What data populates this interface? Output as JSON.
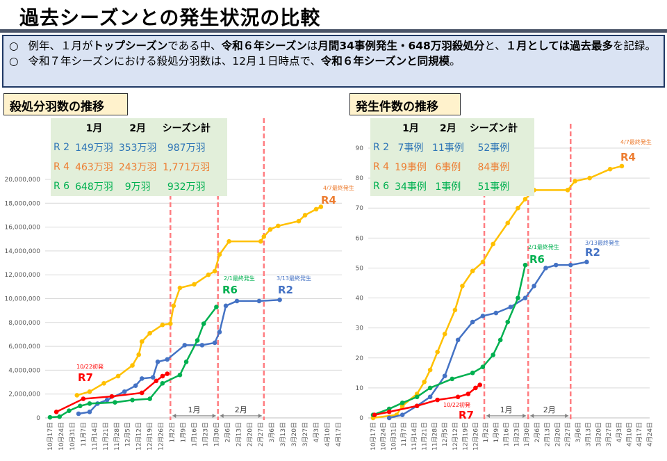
{
  "title": "過去シーズンとの発生状況の比較",
  "banner": {
    "bullet": "○",
    "line1": [
      {
        "t": "例年、１月が",
        "b": false
      },
      {
        "t": "トップシーズン",
        "b": true
      },
      {
        "t": "である中、",
        "b": false
      },
      {
        "t": "令和６年シーズン",
        "b": true
      },
      {
        "t": "は",
        "b": false
      },
      {
        "t": "月間34事例発生・648万羽殺処分",
        "b": true
      },
      {
        "t": "と、",
        "b": false
      },
      {
        "t": "１月としては過去最多",
        "b": true
      },
      {
        "t": "を記録。",
        "b": false
      }
    ],
    "line2": [
      {
        "t": "令和７年シーズンにおける殺処分羽数は、12月１日時点で、",
        "b": false
      },
      {
        "t": "令和６年シーズンと同規模",
        "b": true
      },
      {
        "t": "。",
        "b": false
      }
    ]
  },
  "colors": {
    "R2": "#4472c4",
    "R4": "#ffc000",
    "R4label": "#ed7d31",
    "R6": "#00b050",
    "R7": "#ff0000",
    "dash": "#ff7c80"
  },
  "month_labels": {
    "jan": "1月",
    "feb": "2月"
  },
  "x_labels": [
    "10月17日",
    "10月24日",
    "10月31日",
    "11月7日",
    "11月14日",
    "11月21日",
    "11月28日",
    "12月5日",
    "12月12日",
    "12月19日",
    "12月26日",
    "1月2日",
    "1月9日",
    "1月16日",
    "1月23日",
    "1月30日",
    "2月6日",
    "2月13日",
    "2月20日",
    "2月27日",
    "3月6日",
    "3月13日",
    "3月20日",
    "3月27日",
    "4月3日",
    "4月10日",
    "4月17日",
    "4月24日"
  ],
  "left": {
    "section": "殺処分羽数の推移",
    "table": {
      "headers": [
        "",
        "1月",
        "2月",
        "シーズン計"
      ],
      "rows": [
        {
          "key": "R2",
          "cells": [
            "R 2",
            "149万羽",
            "353万羽",
            "987万羽"
          ]
        },
        {
          "key": "R4",
          "cells": [
            "R 4",
            "463万羽",
            "243万羽",
            "1,771万羽"
          ]
        },
        {
          "key": "R6",
          "cells": [
            "R 6",
            "648万羽",
            "9万羽",
            "932万羽"
          ]
        }
      ]
    }
  },
  "right": {
    "section": "発生件数の推移",
    "table": {
      "headers": [
        "",
        "1月",
        "2月",
        "シーズン計"
      ],
      "rows": [
        {
          "key": "R2",
          "cells": [
            "R 2",
            "7事例",
            "11事例",
            "52事例"
          ]
        },
        {
          "key": "R4",
          "cells": [
            "R 4",
            "19事例",
            "6事例",
            "84事例"
          ]
        },
        {
          "key": "R6",
          "cells": [
            "R 6",
            "34事例",
            "1事例",
            "51事例"
          ]
        }
      ]
    }
  },
  "chart_data": [
    {
      "type": "line",
      "title": "殺処分羽数の推移",
      "x_unit": "days since 10月17日",
      "ylim": [
        0,
        20000000
      ],
      "yticks": [
        "0",
        "2,000,000",
        "4,000,000",
        "6,000,000",
        "8,000,000",
        "10,000,000",
        "12,000,000",
        "14,000,000",
        "16,000,000",
        "18,000,000",
        "20,000,000"
      ],
      "markers_days": [
        76,
        106,
        135
      ],
      "series": [
        {
          "name": "R4",
          "label": "R4",
          "note": "4/7最終発生",
          "x": [
            17,
            25,
            34,
            43,
            52,
            56,
            58,
            63,
            71,
            76,
            78,
            82,
            91,
            100,
            104,
            107,
            113,
            133,
            135,
            139,
            144,
            157,
            161,
            168,
            171
          ],
          "y": [
            1900000,
            2200000,
            2900000,
            3500000,
            4400000,
            5300000,
            6400000,
            7100000,
            7800000,
            7900000,
            9400000,
            10900000,
            11200000,
            12000000,
            12300000,
            13700000,
            14800000,
            14800000,
            15200000,
            15800000,
            16100000,
            16500000,
            17000000,
            17500000,
            17700000
          ]
        },
        {
          "name": "R2",
          "label": "R2",
          "note": "3/13最終発生",
          "x": [
            18,
            25,
            30,
            36,
            47,
            54,
            58,
            65,
            68,
            74,
            85,
            96,
            104,
            107,
            111,
            118,
            132,
            145
          ],
          "y": [
            350000,
            500000,
            1200000,
            1500000,
            2200000,
            2700000,
            3300000,
            3400000,
            4700000,
            4900000,
            6100000,
            6100000,
            6300000,
            7200000,
            9400000,
            9800000,
            9800000,
            9900000
          ]
        },
        {
          "name": "R6",
          "label": "R6",
          "note": "2/1最終発生",
          "x": [
            0,
            6,
            12,
            19,
            25,
            41,
            52,
            63,
            71,
            82,
            86,
            93,
            97,
            105
          ],
          "y": [
            50000,
            100000,
            600000,
            1000000,
            1200000,
            1300000,
            1500000,
            1600000,
            2900000,
            3600000,
            4700000,
            6500000,
            7900000,
            9300000
          ]
        },
        {
          "name": "R7",
          "label": "R7",
          "note": "10/22初発",
          "x": [
            4,
            21,
            39,
            58,
            67,
            71,
            74
          ],
          "y": [
            500000,
            1600000,
            1800000,
            2100000,
            3100000,
            3500000,
            3700000
          ]
        }
      ]
    },
    {
      "type": "line",
      "title": "発生件数の推移",
      "x_unit": "days since 10月17日",
      "ylim": [
        0,
        90
      ],
      "yticks": [
        "0",
        "10",
        "20",
        "30",
        "40",
        "50",
        "60",
        "70",
        "80",
        "90"
      ],
      "markers_days": [
        76,
        106,
        135
      ],
      "series": [
        {
          "name": "R4",
          "label": "R4",
          "note": "4/7最終発生",
          "x": [
            0,
            16,
            20,
            30,
            35,
            39,
            44,
            49,
            56,
            61,
            68,
            75,
            82,
            92,
            99,
            104,
            110,
            133,
            138,
            148,
            162,
            170
          ],
          "y": [
            0,
            1,
            4,
            8,
            12,
            16,
            22,
            28,
            36,
            44,
            49,
            52,
            58,
            65,
            70,
            73,
            76,
            76,
            79,
            80,
            83,
            84
          ]
        },
        {
          "name": "R2",
          "label": "R2",
          "note": "3/13最終発生",
          "x": [
            11,
            20,
            30,
            39,
            49,
            58,
            68,
            75,
            84,
            94,
            104,
            110,
            118,
            125,
            135,
            146
          ],
          "y": [
            0,
            1,
            4,
            7,
            14,
            26,
            32,
            34,
            35,
            37,
            40,
            44,
            50,
            51,
            51,
            52
          ]
        },
        {
          "name": "R6",
          "label": "R6",
          "note": "2/1最終発生",
          "x": [
            0,
            11,
            20,
            30,
            39,
            54,
            68,
            75,
            82,
            87,
            92,
            99,
            104
          ],
          "y": [
            1,
            3,
            5,
            7,
            10,
            13,
            15,
            17,
            21,
            26,
            32,
            40,
            51
          ]
        },
        {
          "name": "R7",
          "label": "R7",
          "note": "10/22初発",
          "x": [
            1,
            11,
            30,
            44,
            58,
            65,
            70,
            73
          ],
          "y": [
            1,
            2,
            4,
            6,
            7,
            8,
            10,
            11
          ]
        }
      ]
    }
  ]
}
